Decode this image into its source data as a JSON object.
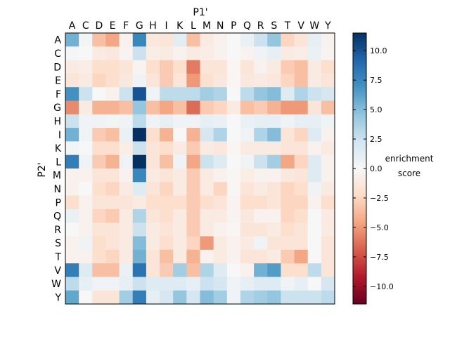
{
  "chart_data": {
    "type": "heatmap",
    "xlabel": "P1'",
    "ylabel": "P2'",
    "x_categories": [
      "A",
      "C",
      "D",
      "E",
      "F",
      "G",
      "H",
      "I",
      "K",
      "L",
      "M",
      "N",
      "P",
      "Q",
      "R",
      "S",
      "T",
      "V",
      "W",
      "Y"
    ],
    "y_categories": [
      "A",
      "C",
      "D",
      "E",
      "F",
      "G",
      "H",
      "I",
      "K",
      "L",
      "M",
      "N",
      "P",
      "Q",
      "R",
      "S",
      "T",
      "V",
      "W",
      "Y"
    ],
    "x_axis_position": "top",
    "colormap": "RdBu",
    "colorbar": {
      "label_line1": "enrichment",
      "label_line2": "score",
      "range": [
        -11.5,
        11.5
      ],
      "ticks": [
        10.0,
        7.5,
        5.0,
        2.5,
        0.0,
        -2.5,
        -5.0,
        -7.5,
        -10.0
      ],
      "tick_labels": [
        "10.0",
        "7.5",
        "5.0",
        "2.5",
        "0.0",
        "−2.5",
        "−5.0",
        "−7.5",
        "−10.0"
      ]
    },
    "values": [
      [
        5.5,
        0.3,
        -3.5,
        -4.5,
        -0.5,
        7.5,
        -1.2,
        -1.5,
        1.2,
        -3.5,
        -1.0,
        -0.5,
        0.0,
        0.8,
        2.5,
        4.5,
        -2.5,
        -1.5,
        1.0,
        -0.5
      ],
      [
        0.2,
        0.0,
        -1.0,
        -1.2,
        -0.3,
        2.5,
        -0.8,
        -1.0,
        -0.5,
        -1.0,
        -0.8,
        -0.5,
        0.0,
        -0.3,
        0.5,
        1.0,
        -1.0,
        -0.8,
        0.8,
        -0.3
      ],
      [
        -1.0,
        -0.8,
        -2.0,
        -2.0,
        -1.5,
        -0.3,
        -2.0,
        -3.0,
        -2.0,
        -6.0,
        -1.5,
        -1.5,
        -0.2,
        -1.5,
        -0.5,
        -1.0,
        -3.0,
        -3.5,
        -1.0,
        -2.0
      ],
      [
        -1.5,
        -1.0,
        -2.5,
        -2.0,
        -1.2,
        0.5,
        -1.5,
        -3.0,
        -1.5,
        -5.0,
        -1.8,
        -1.2,
        -0.2,
        -1.2,
        -1.0,
        -1.2,
        -2.5,
        -3.5,
        -1.0,
        -1.5
      ],
      [
        7.0,
        2.5,
        0.0,
        -0.5,
        2.5,
        10.0,
        0.5,
        3.0,
        3.0,
        3.0,
        4.0,
        3.5,
        0.0,
        3.0,
        4.5,
        5.0,
        1.5,
        3.5,
        2.5,
        2.0
      ],
      [
        -5.5,
        -1.0,
        -4.0,
        -4.0,
        -3.5,
        4.5,
        -3.5,
        -4.5,
        -3.5,
        -6.5,
        -3.0,
        -2.5,
        -1.0,
        -3.5,
        -3.0,
        -4.0,
        -5.0,
        -5.0,
        -1.5,
        -3.5
      ],
      [
        2.5,
        0.5,
        0.5,
        0.3,
        0.5,
        3.0,
        0.5,
        1.0,
        0.5,
        0.5,
        1.0,
        0.8,
        0.0,
        0.8,
        1.0,
        1.0,
        0.5,
        1.0,
        1.0,
        0.5
      ],
      [
        5.5,
        0.5,
        -3.0,
        -3.5,
        0.8,
        12.0,
        -2.0,
        -4.0,
        0.0,
        -4.0,
        2.0,
        3.5,
        0.0,
        0.5,
        3.5,
        5.0,
        -1.5,
        -2.5,
        1.5,
        -0.5
      ],
      [
        0.3,
        0.0,
        -2.0,
        -2.0,
        -0.8,
        2.5,
        -1.5,
        -2.0,
        -1.0,
        -3.0,
        -1.0,
        -1.2,
        -0.2,
        -1.0,
        -1.0,
        -1.0,
        -1.5,
        -1.5,
        -0.5,
        -1.0
      ],
      [
        8.0,
        0.5,
        -3.0,
        -4.0,
        0.5,
        11.5,
        -1.5,
        -3.5,
        0.5,
        -4.5,
        2.5,
        1.5,
        0.0,
        0.5,
        2.5,
        4.0,
        -4.5,
        -2.5,
        1.5,
        -0.5
      ],
      [
        -0.5,
        -0.5,
        -1.5,
        -1.5,
        -0.5,
        7.5,
        -1.0,
        -1.5,
        -1.0,
        -3.0,
        -1.0,
        -0.5,
        -0.2,
        -0.8,
        -0.5,
        -0.5,
        -1.2,
        -1.5,
        1.5,
        -0.5
      ],
      [
        -0.5,
        0.0,
        -2.0,
        -2.5,
        -1.0,
        1.5,
        -1.5,
        -2.5,
        -1.0,
        -3.0,
        -1.0,
        -2.5,
        -0.2,
        -1.5,
        -1.0,
        -1.5,
        -2.5,
        -2.0,
        0.5,
        -1.0
      ],
      [
        -2.0,
        -0.5,
        -1.5,
        -1.5,
        -1.5,
        -1.0,
        -2.0,
        -2.0,
        -2.0,
        -3.0,
        -2.0,
        -1.5,
        -0.3,
        -2.0,
        -2.0,
        -1.5,
        -2.5,
        -2.5,
        -0.5,
        -2.0
      ],
      [
        0.8,
        -0.5,
        -2.5,
        -3.0,
        -1.0,
        3.5,
        -1.5,
        -2.0,
        -1.0,
        -3.0,
        -1.0,
        -1.0,
        -0.3,
        -1.2,
        -0.5,
        -0.5,
        -2.5,
        -2.0,
        0.0,
        -1.0
      ],
      [
        0.0,
        -0.5,
        -1.5,
        -1.5,
        -1.0,
        2.5,
        -1.0,
        -1.5,
        -1.0,
        -3.0,
        -1.0,
        -0.5,
        -0.2,
        -1.5,
        -1.5,
        -1.0,
        -2.0,
        -1.5,
        0.0,
        -1.0
      ],
      [
        -0.5,
        0.5,
        -2.0,
        -1.5,
        -1.0,
        5.0,
        -1.0,
        -2.0,
        -1.0,
        -2.5,
        -5.0,
        -1.0,
        -0.5,
        -1.0,
        0.5,
        -1.5,
        -1.5,
        -1.5,
        0.0,
        -1.5
      ],
      [
        -0.5,
        -0.5,
        -2.0,
        -2.5,
        -1.0,
        5.5,
        -1.5,
        -3.5,
        -1.0,
        -4.0,
        -0.5,
        -1.0,
        -0.5,
        -1.5,
        -1.5,
        -1.0,
        -3.0,
        -4.5,
        0.0,
        -1.5
      ],
      [
        8.0,
        1.5,
        -3.5,
        -3.5,
        0.8,
        8.5,
        -1.5,
        -3.0,
        4.0,
        -3.5,
        3.5,
        1.5,
        0.0,
        -0.5,
        5.5,
        6.5,
        -2.0,
        -2.0,
        3.0,
        -1.5
      ],
      [
        3.0,
        1.0,
        0.5,
        0.5,
        1.0,
        2.5,
        1.5,
        1.5,
        1.5,
        1.0,
        2.5,
        2.0,
        0.5,
        1.0,
        1.5,
        1.5,
        0.5,
        1.0,
        0.0,
        2.0
      ],
      [
        6.0,
        0.0,
        -1.5,
        -1.5,
        4.0,
        8.0,
        1.0,
        2.0,
        4.5,
        2.0,
        5.0,
        4.0,
        0.5,
        3.5,
        4.0,
        4.5,
        2.5,
        2.5,
        2.5,
        3.0
      ]
    ],
    "grid": false,
    "legend": "colorbar-right"
  }
}
